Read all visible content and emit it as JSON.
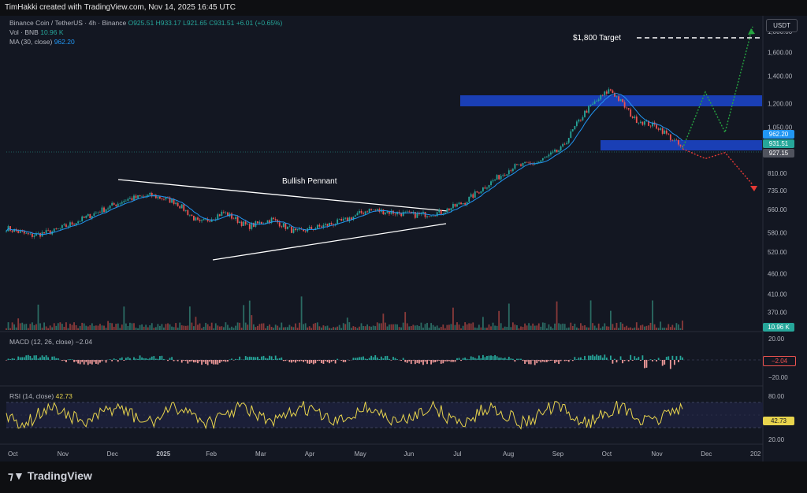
{
  "header": {
    "credit": "TimHakki created with TradingView.com, Nov 14, 2025 16:45 UTC"
  },
  "legend": {
    "symbol": "Binance Coin / TetherUS · 4h · Binance",
    "o": "O925.51",
    "h": "H933.17",
    "l": "L921.65",
    "c": "C931.51",
    "chg": "+6.01 (+0.65%)",
    "vol_label": "Vol · BNB",
    "vol_val": "10.96 K",
    "ma_label": "MA (30, close)",
    "ma_val": "962.20"
  },
  "currency_button": "USDT",
  "macd": {
    "label": "MACD (12, 26, close)",
    "value": "−2.04",
    "tag": "−2.04",
    "ticks": [
      "20.00",
      "−20.00"
    ]
  },
  "rsi": {
    "label": "RSI (14, close)",
    "value": "42.73",
    "tag": "42.73",
    "ticks": [
      "80.00",
      "20.00"
    ]
  },
  "volume_tag": "10.96 K",
  "price_tags": {
    "ma": "962.20",
    "close": "931.51",
    "level": "927.15"
  },
  "annotations": {
    "pennant": "Bullish Pennant",
    "target": "$1,800 Target"
  },
  "footer": {
    "brand": "TradingView"
  },
  "chart_data": {
    "type": "line",
    "title": "Binance Coin / TetherUS · 4h · Binance",
    "y_scale": "log",
    "price_axis_ticks": [
      "1,800.00",
      "1,600.00",
      "1,400.00",
      "1,200.00",
      "1,050.00",
      "962.20",
      "931.51",
      "927.15",
      "810.00",
      "735.00",
      "660.00",
      "580.00",
      "520.00",
      "460.00",
      "410.00",
      "370.00"
    ],
    "x_ticks": [
      "Oct",
      "Nov",
      "Dec",
      "2025",
      "Feb",
      "Mar",
      "Apr",
      "May",
      "Jun",
      "Jul",
      "Aug",
      "Sep",
      "Oct",
      "Nov",
      "Dec",
      "202"
    ],
    "price_series": {
      "name": "BNBUSDT",
      "x": [
        "Oct",
        "Oct 20",
        "Nov",
        "Nov 20",
        "Dec",
        "Dec 20",
        "2025",
        "Jan 20",
        "Feb",
        "Feb 20",
        "Mar",
        "Mar 20",
        "Apr",
        "Apr 20",
        "May",
        "May 20",
        "Jun",
        "Jun 20",
        "Jul",
        "Jul 20",
        "Aug",
        "Aug 20",
        "Sep",
        "Sep 20",
        "Oct",
        "Oct 10",
        "Oct 20",
        "Nov",
        "Nov 14"
      ],
      "values": [
        595,
        570,
        585,
        620,
        660,
        700,
        715,
        690,
        610,
        650,
        600,
        625,
        580,
        600,
        620,
        660,
        650,
        640,
        650,
        690,
        765,
        840,
        860,
        930,
        1150,
        1300,
        1100,
        1050,
        931
      ]
    },
    "zones": [
      {
        "from": 1210,
        "to": 1290,
        "color": "#1a3fb5"
      },
      {
        "from": 905,
        "to": 960,
        "color": "#1a3fb5"
      }
    ],
    "projections": {
      "bullish": [
        930,
        1280,
        1020,
        1850
      ],
      "bearish": [
        930,
        880,
        910,
        760
      ]
    },
    "target_level": 1800,
    "colors": {
      "up": "#26a69a",
      "down": "#ef5350",
      "ma": "#2196f3",
      "rsi": "#e8d44d",
      "zone": "#1a3fb5"
    }
  }
}
